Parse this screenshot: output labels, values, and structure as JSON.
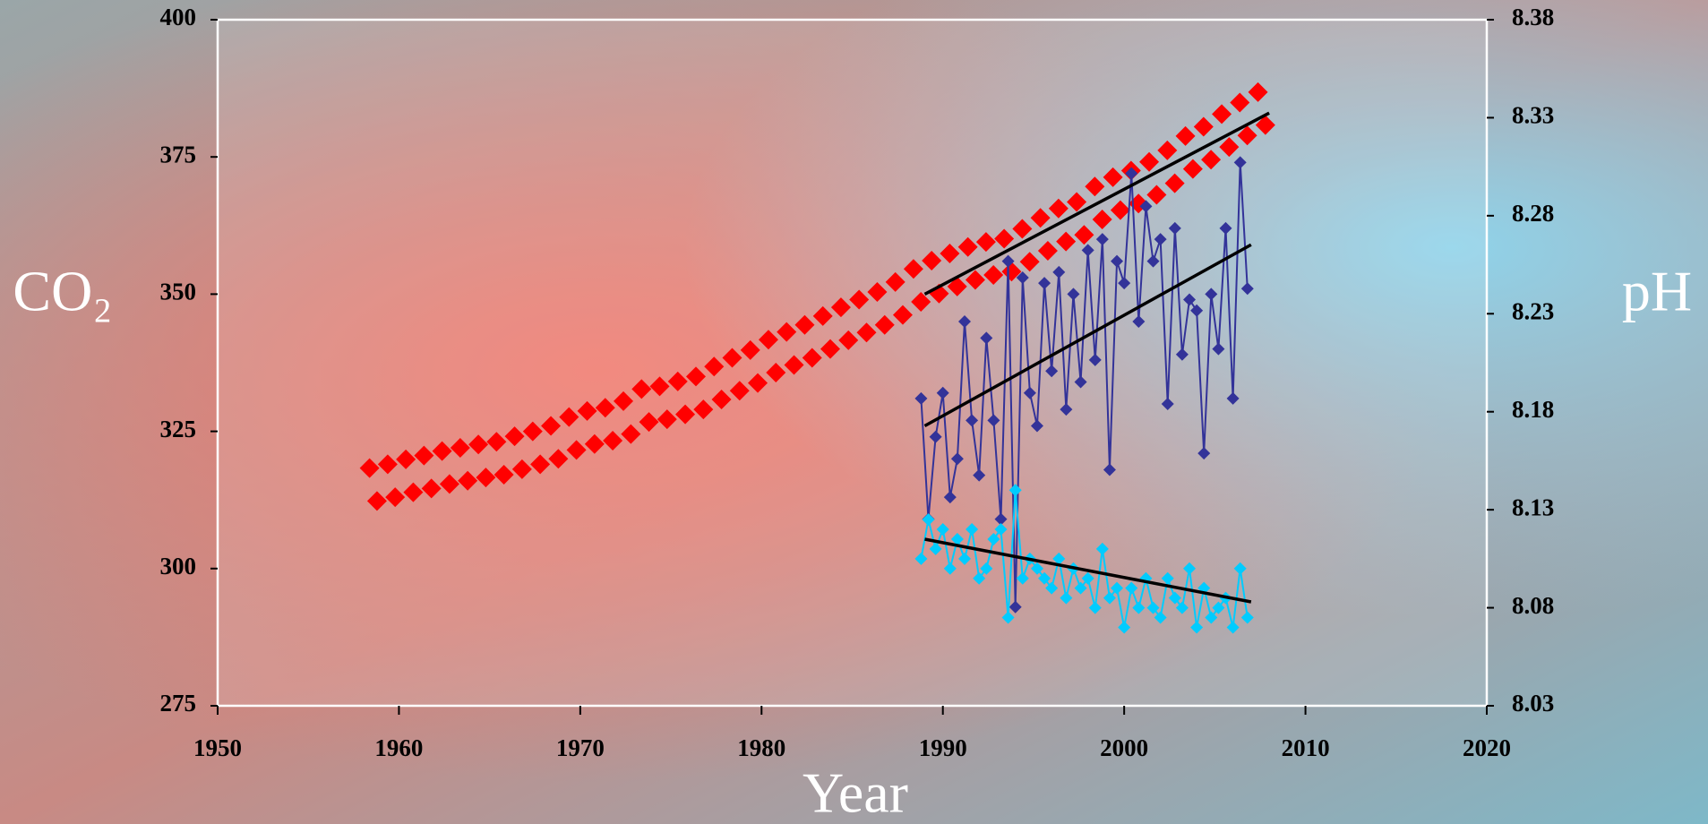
{
  "chart_data": {
    "type": "scatter",
    "x_label": "Year",
    "y_label": "CO₂",
    "y2_label": "pH",
    "xlim": [
      1950,
      2020
    ],
    "xticks": [
      1950,
      1960,
      1970,
      1980,
      1990,
      2000,
      2010,
      2020
    ],
    "ylim": [
      275,
      400
    ],
    "yticks": [
      275,
      300,
      325,
      350,
      375,
      400
    ],
    "y2lim": [
      8.03,
      8.38
    ],
    "y2ticks": [
      8.03,
      8.08,
      8.13,
      8.18,
      8.23,
      8.28,
      8.33,
      8.38
    ],
    "series": [
      {
        "color": "#ff0000",
        "line": false,
        "marker_size": 11,
        "x": [
          1958.38,
          1958.79,
          1959.38,
          1959.79,
          1960.38,
          1960.79,
          1961.38,
          1961.79,
          1962.38,
          1962.79,
          1963.38,
          1963.79,
          1964.38,
          1964.79,
          1965.38,
          1965.79,
          1966.38,
          1966.79,
          1967.38,
          1967.79,
          1968.38,
          1968.79,
          1969.38,
          1969.79,
          1970.38,
          1970.79,
          1971.38,
          1971.79,
          1972.38,
          1972.79,
          1973.38,
          1973.79,
          1974.38,
          1974.79,
          1975.38,
          1975.79,
          1976.38,
          1976.79,
          1977.38,
          1977.79,
          1978.38,
          1978.79,
          1979.38,
          1979.79,
          1980.38,
          1980.79,
          1981.38,
          1981.79,
          1982.38,
          1982.79,
          1983.38,
          1983.79,
          1984.38,
          1984.79,
          1985.38,
          1985.79,
          1986.38,
          1986.79,
          1987.38,
          1987.79,
          1988.38,
          1988.79,
          1989.38,
          1989.79,
          1990.38,
          1990.79,
          1991.38,
          1991.79,
          1992.38,
          1992.79,
          1993.38,
          1993.79,
          1994.38,
          1994.79,
          1995.38,
          1995.79,
          1996.38,
          1996.79,
          1997.38,
          1997.79,
          1998.38,
          1998.79,
          1999.38,
          1999.79,
          2000.38,
          2000.79,
          2001.38,
          2001.79,
          2002.38,
          2002.79,
          2003.38,
          2003.79,
          2004.38,
          2004.79,
          2005.38,
          2005.79,
          2006.38,
          2006.79,
          2007.38,
          2007.79
        ],
        "values": [
          318.3,
          312.3,
          319,
          313,
          319.9,
          313.9,
          320.6,
          314.6,
          321.4,
          315.4,
          322,
          316,
          322.6,
          316.6,
          323.1,
          317.1,
          324.1,
          318.1,
          325,
          319,
          326,
          320,
          327.6,
          321.6,
          328.7,
          322.7,
          329.3,
          323.3,
          330.5,
          324.5,
          332.7,
          326.7,
          333.2,
          327.2,
          334.1,
          328.1,
          335,
          329,
          336.8,
          330.8,
          338.4,
          332.4,
          339.8,
          333.8,
          341.7,
          335.7,
          343.1,
          337.1,
          344.4,
          338.4,
          346,
          340,
          347.6,
          341.6,
          349,
          343,
          350.4,
          344.4,
          352.2,
          346.2,
          354.6,
          348.6,
          356.1,
          350.1,
          357.4,
          351.4,
          358.6,
          352.6,
          359.5,
          353.5,
          360.1,
          354.1,
          361.9,
          355.9,
          363.9,
          357.9,
          365.6,
          359.6,
          366.8,
          360.8,
          369.6,
          363.6,
          371.3,
          365.3,
          372.5,
          366.5,
          374.1,
          368.1,
          376.2,
          370.2,
          378.8,
          372.8,
          380.5,
          374.5,
          382.8,
          376.8,
          384.9,
          378.9,
          386.8,
          380.8
        ]
      },
      {
        "color": "#333399",
        "line": true,
        "marker_size": 7,
        "x": [
          1988.8,
          1989.2,
          1989.6,
          1990.0,
          1990.4,
          1990.8,
          1991.2,
          1991.6,
          1992.0,
          1992.4,
          1992.8,
          1993.2,
          1993.6,
          1994.0,
          1994.4,
          1994.8,
          1995.2,
          1995.6,
          1996.0,
          1996.4,
          1996.8,
          1997.2,
          1997.6,
          1998.0,
          1998.4,
          1998.8,
          1999.2,
          1999.6,
          2000.0,
          2000.4,
          2000.8,
          2001.2,
          2001.6,
          2002.0,
          2002.4,
          2002.8,
          2003.2,
          2003.6,
          2004.0,
          2004.4,
          2004.8,
          2005.2,
          2005.6,
          2006.0,
          2006.4,
          2006.8
        ],
        "values": [
          331,
          309,
          324,
          332,
          313,
          320,
          345,
          327,
          317,
          342,
          327,
          309,
          356,
          293,
          353,
          332,
          326,
          352,
          336,
          354,
          329,
          350,
          334,
          358,
          338,
          360,
          318,
          356,
          352,
          372,
          345,
          366,
          356,
          360,
          330,
          362,
          339,
          349,
          347,
          321,
          350,
          340,
          362,
          331,
          374,
          351
        ]
      },
      {
        "color": "#00ccff",
        "line": true,
        "marker_size": 7,
        "axis": "y2",
        "x": [
          1988.8,
          1989.2,
          1989.6,
          1990.0,
          1990.4,
          1990.8,
          1991.2,
          1991.6,
          1992.0,
          1992.4,
          1992.8,
          1993.2,
          1993.6,
          1994.0,
          1994.4,
          1994.8,
          1995.2,
          1995.6,
          1996.0,
          1996.4,
          1996.8,
          1997.2,
          1997.6,
          1998.0,
          1998.4,
          1998.8,
          1999.2,
          1999.6,
          2000.0,
          2000.4,
          2000.8,
          2001.2,
          2001.6,
          2002.0,
          2002.4,
          2002.8,
          2003.2,
          2003.6,
          2004.0,
          2004.4,
          2004.8,
          2005.2,
          2005.6,
          2006.0,
          2006.4,
          2006.8
        ],
        "values": [
          8.105,
          8.125,
          8.11,
          8.12,
          8.1,
          8.115,
          8.105,
          8.12,
          8.095,
          8.1,
          8.115,
          8.12,
          8.075,
          8.14,
          8.095,
          8.105,
          8.1,
          8.095,
          8.09,
          8.105,
          8.085,
          8.1,
          8.09,
          8.095,
          8.08,
          8.11,
          8.085,
          8.09,
          8.07,
          8.09,
          8.08,
          8.095,
          8.08,
          8.075,
          8.095,
          8.085,
          8.08,
          8.1,
          8.07,
          8.09,
          8.075,
          8.08,
          8.085,
          8.07,
          8.1,
          8.075
        ]
      },
      {
        "color": "#000000",
        "line": true,
        "x": [
          1989,
          2008
        ],
        "values": [
          350,
          383
        ]
      },
      {
        "color": "#000000",
        "line": true,
        "x": [
          1989,
          2007
        ],
        "values": [
          326,
          359
        ]
      },
      {
        "color": "#000000",
        "line": true,
        "axis": "y2",
        "x": [
          1989,
          2007
        ],
        "values": [
          8.115,
          8.083
        ]
      }
    ]
  }
}
